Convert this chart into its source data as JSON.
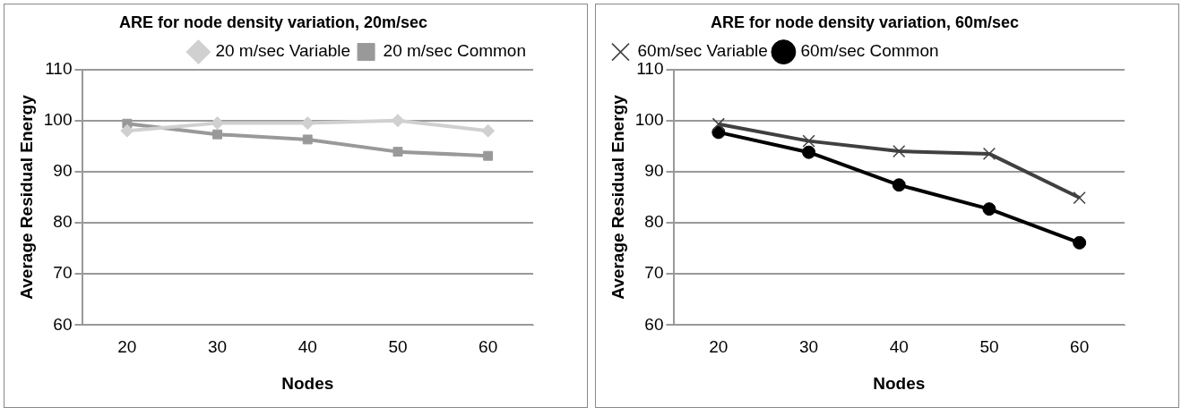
{
  "chart_data": [
    {
      "type": "line",
      "title": "ARE for node density variation, 20m/sec",
      "xlabel": "Nodes",
      "ylabel": "Average Residual Energy",
      "categories": [
        "20",
        "30",
        "40",
        "50",
        "60"
      ],
      "ylim": [
        60,
        110
      ],
      "yticks": [
        60,
        70,
        80,
        90,
        100,
        110
      ],
      "grid": "y",
      "legend": "top right",
      "series": [
        {
          "name": "20 m/sec Variable",
          "color": "#d0d0d0",
          "marker": "diamond",
          "values": [
            98,
            99.5,
            99.5,
            100,
            98
          ]
        },
        {
          "name": "20 m/sec Common",
          "color": "#999999",
          "marker": "square",
          "values": [
            99.4,
            97.3,
            96.3,
            93.9,
            93.1
          ]
        }
      ]
    },
    {
      "type": "line",
      "title": "ARE for node density variation, 60m/sec",
      "xlabel": "Nodes",
      "ylabel": "Average Residual Energy",
      "categories": [
        "20",
        "30",
        "40",
        "50",
        "60"
      ],
      "ylim": [
        60,
        110
      ],
      "yticks": [
        60,
        70,
        80,
        90,
        100,
        110
      ],
      "grid": "y",
      "legend": "top left",
      "series": [
        {
          "name": "60m/sec Variable",
          "color": "#404040",
          "marker": "cross",
          "values": [
            99.3,
            96,
            94,
            93.5,
            84.9
          ]
        },
        {
          "name": "60m/sec Common",
          "color": "#000000",
          "marker": "circle",
          "values": [
            97.7,
            93.8,
            87.4,
            82.7,
            76.1
          ]
        }
      ]
    }
  ]
}
